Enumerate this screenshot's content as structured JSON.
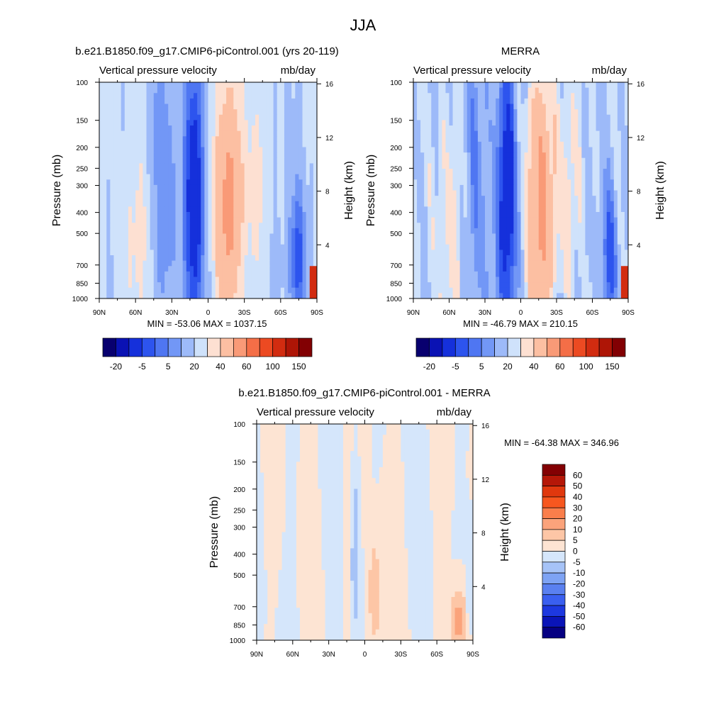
{
  "figure": {
    "season": "JJA"
  },
  "chart_data": [
    {
      "type": "heatmap",
      "title": "b.e21.B1850.f09_g17.CMIP6-piControl.001 (yrs 20-119)",
      "variable": "Vertical pressure velocity",
      "units": "mb/day",
      "ylabel": "Pressure (mb)",
      "ylabel_right": "Height (km)",
      "x_ticks": [
        "90N",
        "60N",
        "30N",
        "0",
        "30S",
        "60S",
        "90S"
      ],
      "y_ticks": [
        "100",
        "150",
        "200",
        "250",
        "300",
        "400",
        "500",
        "700",
        "850",
        "1000"
      ],
      "y_ticks_right": [
        "16",
        "12",
        "8",
        "4"
      ],
      "stats": "MIN = -53.06  MAX = 1037.15",
      "min": -53.06,
      "max": 1037.15,
      "colorbar_labels": [
        "-20",
        "-5",
        "5",
        "20",
        "40",
        "60",
        "100",
        "150"
      ],
      "colorbar_orientation": "horizontal"
    },
    {
      "type": "heatmap",
      "title": "MERRA",
      "variable": "Vertical pressure velocity",
      "units": "mb/day",
      "ylabel": "Pressure (mb)",
      "ylabel_right": "Height (km)",
      "x_ticks": [
        "90N",
        "60N",
        "30N",
        "0",
        "30S",
        "60S",
        "90S"
      ],
      "y_ticks": [
        "100",
        "150",
        "200",
        "250",
        "300",
        "400",
        "500",
        "700",
        "850",
        "1000"
      ],
      "y_ticks_right": [
        "16",
        "12",
        "8",
        "4"
      ],
      "stats": "MIN = -46.79  MAX = 210.15",
      "min": -46.79,
      "max": 210.15,
      "colorbar_labels": [
        "-20",
        "-5",
        "5",
        "20",
        "40",
        "60",
        "100",
        "150"
      ],
      "colorbar_orientation": "horizontal"
    },
    {
      "type": "heatmap",
      "title": "b.e21.B1850.f09_g17.CMIP6-piControl.001 - MERRA",
      "variable": "Vertical pressure velocity",
      "units": "mb/day",
      "ylabel": "Pressure (mb)",
      "ylabel_right": "Height (km)",
      "x_ticks": [
        "90N",
        "60N",
        "30N",
        "0",
        "30S",
        "60S",
        "90S"
      ],
      "y_ticks": [
        "100",
        "150",
        "200",
        "250",
        "300",
        "400",
        "500",
        "700",
        "850",
        "1000"
      ],
      "y_ticks_right": [
        "16",
        "12",
        "8",
        "4"
      ],
      "stats": "MIN = -64.38  MAX = 346.96",
      "min": -64.38,
      "max": 346.96,
      "colorbar_labels": [
        "60",
        "50",
        "40",
        "30",
        "20",
        "10",
        "5",
        "0",
        "-5",
        "-10",
        "-20",
        "-30",
        "-40",
        "-50",
        "-60"
      ],
      "colorbar_orientation": "vertical"
    }
  ],
  "colorbars": {
    "mean": [
      "#08006f",
      "#0a12b4",
      "#1530db",
      "#2d54ee",
      "#4f76f2",
      "#7297f6",
      "#9dbaf9",
      "#cfe2fb",
      "#fde0d2",
      "#fcbfa2",
      "#f99a77",
      "#f46e47",
      "#ec4a22",
      "#d22c10",
      "#ae1506",
      "#820003"
    ],
    "diff": [
      "#830003",
      "#b51708",
      "#e0380e",
      "#f7571f",
      "#fa7e4b",
      "#fba37b",
      "#fdc6a6",
      "#fde4d3",
      "#d5e6fb",
      "#a6c3f7",
      "#7ea3f4",
      "#5a80f0",
      "#3a5ff0",
      "#1d38e0",
      "#0a14b8",
      "#060082"
    ]
  }
}
